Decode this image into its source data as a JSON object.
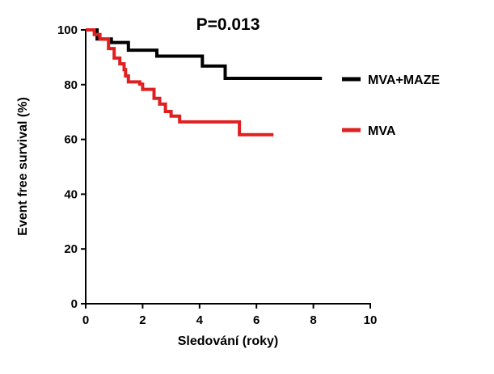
{
  "chart_data": {
    "type": "line",
    "title": "P=0.013",
    "xlabel": "Sledování (roky)",
    "ylabel": "Event free survival (%)",
    "xlim": [
      0,
      10
    ],
    "ylim": [
      0,
      100
    ],
    "xticks": [
      0,
      2,
      4,
      6,
      8,
      10
    ],
    "yticks": [
      0,
      20,
      40,
      60,
      80,
      100
    ],
    "grid": false,
    "legend_position": "right",
    "step": true,
    "series": [
      {
        "name": "MVA+MAZE",
        "color": "#000000",
        "points": [
          [
            0,
            100
          ],
          [
            0.4,
            96.7
          ],
          [
            0.9,
            95.4
          ],
          [
            1.5,
            92.6
          ],
          [
            2.5,
            90.4
          ],
          [
            4.1,
            86.8
          ],
          [
            4.9,
            82.3
          ],
          [
            8.3,
            82.3
          ]
        ]
      },
      {
        "name": "MVA",
        "color": "#e02020",
        "points": [
          [
            0,
            100
          ],
          [
            0.3,
            98.3
          ],
          [
            0.5,
            96.6
          ],
          [
            0.8,
            93.2
          ],
          [
            1.0,
            89.7
          ],
          [
            1.2,
            87.6
          ],
          [
            1.35,
            85.5
          ],
          [
            1.4,
            83.2
          ],
          [
            1.5,
            81.0
          ],
          [
            1.9,
            80.2
          ],
          [
            2.0,
            78.3
          ],
          [
            2.4,
            75.0
          ],
          [
            2.6,
            72.9
          ],
          [
            2.8,
            70.2
          ],
          [
            3.0,
            68.5
          ],
          [
            3.3,
            66.4
          ],
          [
            5.4,
            61.7
          ],
          [
            6.6,
            61.7
          ]
        ]
      }
    ]
  }
}
